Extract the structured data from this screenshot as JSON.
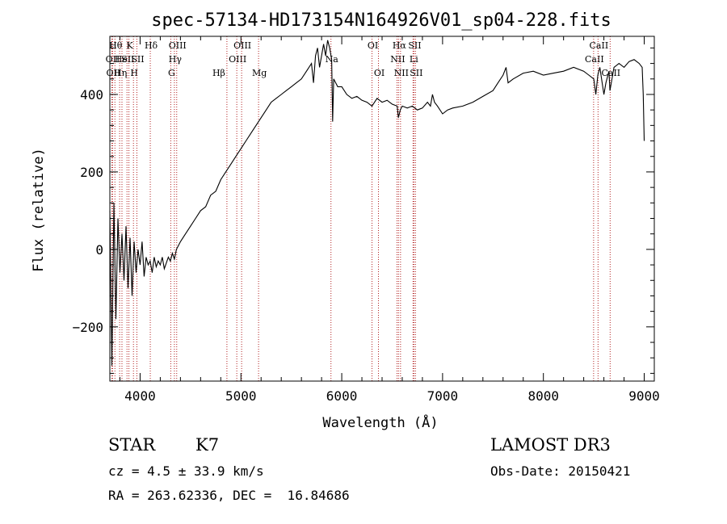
{
  "chart_data": {
    "type": "line",
    "title": "spec-57134-HD173154N164926V01_sp04-228.fits",
    "xlabel": "Wavelength (Å)",
    "ylabel": "Flux (relative)",
    "xlim": [
      3700,
      9100
    ],
    "ylim": [
      -340,
      550
    ],
    "xticks": [
      4000,
      5000,
      6000,
      7000,
      8000,
      9000
    ],
    "yticks": [
      -200,
      0,
      200,
      400
    ],
    "ytick_labels": [
      "−200",
      "0",
      "200",
      "400"
    ],
    "grid": false,
    "series": [
      {
        "x": [
          3700,
          3720,
          3740,
          3760,
          3780,
          3800,
          3820,
          3840,
          3860,
          3880,
          3900,
          3920,
          3940,
          3960,
          3980,
          4000,
          4020,
          4040,
          4060,
          4080,
          4100,
          4120,
          4140,
          4160,
          4180,
          4200,
          4220,
          4240,
          4260,
          4280,
          4300,
          4320,
          4340,
          4360,
          4380,
          4400,
          4450,
          4500,
          4550,
          4600,
          4650,
          4700,
          4750,
          4800,
          4850,
          4900,
          4950,
          5000,
          5050,
          5100,
          5150,
          5200,
          5250,
          5300,
          5350,
          5400,
          5450,
          5500,
          5550,
          5600,
          5650,
          5700,
          5720,
          5740,
          5760,
          5780,
          5800,
          5820,
          5840,
          5860,
          5880,
          5900,
          5910,
          5920,
          5940,
          5960,
          6000,
          6050,
          6100,
          6150,
          6200,
          6250,
          6300,
          6350,
          6400,
          6450,
          6500,
          6550,
          6562,
          6580,
          6600,
          6650,
          6700,
          6750,
          6800,
          6850,
          6880,
          6900,
          6920,
          6950,
          7000,
          7050,
          7100,
          7200,
          7300,
          7400,
          7500,
          7550,
          7600,
          7630,
          7650,
          7700,
          7800,
          7900,
          8000,
          8100,
          8200,
          8300,
          8400,
          8450,
          8500,
          8520,
          8540,
          8560,
          8600,
          8620,
          8650,
          8660,
          8700,
          8750,
          8800,
          8850,
          8900,
          8950,
          8980,
          8990,
          9000
        ],
        "y": [
          100,
          -300,
          120,
          -180,
          80,
          -60,
          40,
          -80,
          60,
          -100,
          30,
          -120,
          20,
          -60,
          0,
          -40,
          20,
          -70,
          -20,
          -40,
          -30,
          -60,
          -20,
          -45,
          -30,
          -40,
          -20,
          -50,
          -35,
          -20,
          -30,
          -10,
          -25,
          0,
          10,
          20,
          40,
          60,
          80,
          100,
          110,
          140,
          150,
          180,
          200,
          220,
          240,
          260,
          280,
          300,
          320,
          340,
          360,
          380,
          390,
          400,
          410,
          420,
          430,
          440,
          460,
          480,
          430,
          500,
          520,
          470,
          500,
          530,
          500,
          540,
          520,
          490,
          330,
          440,
          430,
          420,
          420,
          400,
          390,
          395,
          385,
          380,
          370,
          390,
          380,
          385,
          375,
          370,
          340,
          360,
          370,
          365,
          370,
          360,
          365,
          380,
          370,
          400,
          380,
          370,
          350,
          360,
          365,
          370,
          380,
          395,
          410,
          430,
          450,
          470,
          430,
          440,
          455,
          460,
          450,
          455,
          460,
          470,
          460,
          450,
          440,
          400,
          450,
          470,
          400,
          430,
          460,
          410,
          470,
          480,
          470,
          485,
          490,
          480,
          470,
          400,
          280
        ]
      }
    ],
    "lines": [
      {
        "x": 3720,
        "label": "OII",
        "row": 1,
        "pos": "left"
      },
      {
        "x": 3727,
        "label": "OII",
        "row": 2,
        "pos": "left"
      },
      {
        "x": 3750,
        "label": "Hθ",
        "row": 0,
        "pos": "left"
      },
      {
        "x": 3797,
        "label": "Hη",
        "row": 2,
        "pos": "left"
      },
      {
        "x": 3820,
        "label": "HeI",
        "row": 1,
        "pos": "left"
      },
      {
        "x": 3870,
        "label": "SII",
        "row": 1,
        "pos": "left"
      },
      {
        "x": 3889,
        "label": "K",
        "row": 0,
        "pos": "left"
      },
      {
        "x": 3934,
        "label": "H",
        "row": 2,
        "pos": "left"
      },
      {
        "x": 3968,
        "label": "SII",
        "row": 1,
        "pos": "left"
      },
      {
        "x": 4101,
        "label": "Hδ",
        "row": 0,
        "pos": "left"
      },
      {
        "x": 4304,
        "label": "G",
        "row": 2,
        "pos": "left"
      },
      {
        "x": 4340,
        "label": "Hγ",
        "row": 1,
        "pos": "left"
      },
      {
        "x": 4363,
        "label": "OIII",
        "row": 0,
        "pos": "left"
      },
      {
        "x": 4861,
        "label": "Hβ",
        "row": 2,
        "pos": "right"
      },
      {
        "x": 4959,
        "label": "OIII",
        "row": 1,
        "pos": "left"
      },
      {
        "x": 5007,
        "label": "OIII",
        "row": 0,
        "pos": "left"
      },
      {
        "x": 5175,
        "label": "Mg",
        "row": 2,
        "pos": "left"
      },
      {
        "x": 5893,
        "label": "Na",
        "row": 1,
        "pos": "left"
      },
      {
        "x": 6300,
        "label": "OI",
        "row": 0,
        "pos": "left"
      },
      {
        "x": 6364,
        "label": "OI",
        "row": 2,
        "pos": "left"
      },
      {
        "x": 6548,
        "label": "NII",
        "row": 1,
        "pos": "left"
      },
      {
        "x": 6563,
        "label": "Hα",
        "row": 0,
        "pos": "left"
      },
      {
        "x": 6583,
        "label": "NII",
        "row": 2,
        "pos": "left"
      },
      {
        "x": 6707,
        "label": "Li",
        "row": 1,
        "pos": "left"
      },
      {
        "x": 6716,
        "label": "SII",
        "row": 0,
        "pos": "left"
      },
      {
        "x": 6731,
        "label": "SII",
        "row": 2,
        "pos": "left"
      },
      {
        "x": 8498,
        "label": "CaII",
        "row": 1,
        "pos": "left"
      },
      {
        "x": 8542,
        "label": "CaII",
        "row": 0,
        "pos": "left"
      },
      {
        "x": 8662,
        "label": "CaII",
        "row": 2,
        "pos": "left"
      }
    ]
  },
  "info": {
    "object_type": "STAR",
    "subclass": "K7",
    "cz": "cz = 4.5 ± 33.9 km/s",
    "radec": "RA = 263.62336, DEC =  16.84686",
    "survey": "LAMOST DR3",
    "obs_date": "Obs-Date: 20150421"
  }
}
